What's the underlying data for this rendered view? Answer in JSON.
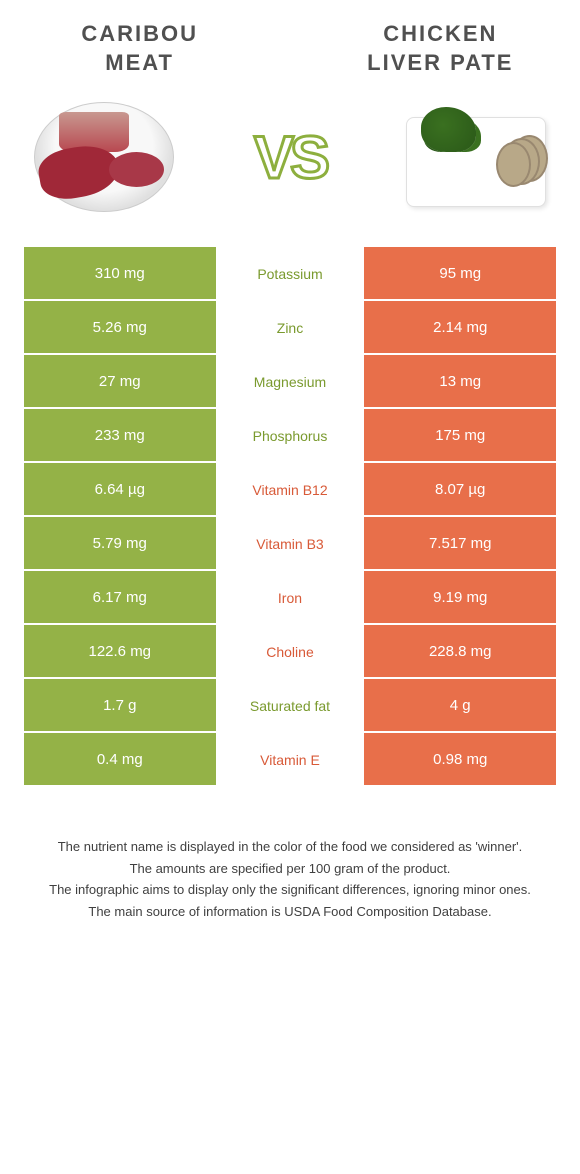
{
  "colors": {
    "green": "#94b247",
    "orange": "#e86f4a",
    "text_green": "#7a9a2e",
    "text_orange": "#d85a38"
  },
  "left_title": "CARIBOU\nMEAT",
  "right_title": "CHICKEN\nLIVER PATE",
  "vs_label": "VS",
  "rows": [
    {
      "left": "310 mg",
      "name": "Potassium",
      "right": "95 mg",
      "winner": "left"
    },
    {
      "left": "5.26 mg",
      "name": "Zinc",
      "right": "2.14 mg",
      "winner": "left"
    },
    {
      "left": "27 mg",
      "name": "Magnesium",
      "right": "13 mg",
      "winner": "left"
    },
    {
      "left": "233 mg",
      "name": "Phosphorus",
      "right": "175 mg",
      "winner": "left"
    },
    {
      "left": "6.64 µg",
      "name": "Vitamin B12",
      "right": "8.07 µg",
      "winner": "right"
    },
    {
      "left": "5.79 mg",
      "name": "Vitamin B3",
      "right": "7.517 mg",
      "winner": "right"
    },
    {
      "left": "6.17 mg",
      "name": "Iron",
      "right": "9.19 mg",
      "winner": "right"
    },
    {
      "left": "122.6 mg",
      "name": "Choline",
      "right": "228.8 mg",
      "winner": "right"
    },
    {
      "left": "1.7 g",
      "name": "Saturated fat",
      "right": "4 g",
      "winner": "left"
    },
    {
      "left": "0.4 mg",
      "name": "Vitamin E",
      "right": "0.98 mg",
      "winner": "right"
    }
  ],
  "footer": [
    "The nutrient name is displayed in the color of the food we considered as 'winner'.",
    "The amounts are specified per 100 gram of the product.",
    "The infographic aims to display only the significant differences, ignoring minor ones.",
    "The main source of information is USDA Food Composition Database."
  ]
}
